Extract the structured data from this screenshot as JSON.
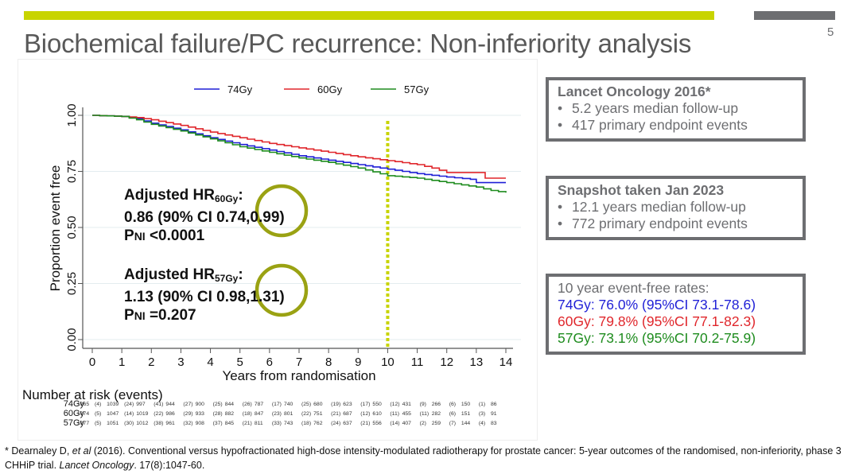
{
  "slide": {
    "title": "Biochemical failure/PC recurrence: Non-inferiority analysis",
    "page_number": "5",
    "colors": {
      "accent": "#c8d400",
      "grey": "#6d6e71",
      "circle": "#9aa213"
    }
  },
  "boxes": {
    "lancet": {
      "title": "Lancet Oncology 2016*",
      "bullets": [
        "5.2 years median follow-up",
        "417 primary endpoint events"
      ]
    },
    "snapshot": {
      "title": "Snapshot taken Jan 2023",
      "bullets": [
        "12.1 years median follow-up",
        "772 primary endpoint events"
      ]
    },
    "rates": {
      "heading": "10 year event-free rates:",
      "lines": [
        {
          "text": "74Gy: 76.0% (95%CI 73.1-78.6)",
          "color": "#1f1fd6"
        },
        {
          "text": "60Gy: 79.8% (95%CI 77.1-82.3)",
          "color": "#e0262b"
        },
        {
          "text": "57Gy: 73.1% (95%CI 70.2-75.9)",
          "color": "#1e8c1e"
        }
      ]
    }
  },
  "annotations": {
    "hr60": {
      "label": "Adjusted HR",
      "sub": "60Gy",
      "colon": ":",
      "line2": "0.86 (90% CI 0.74,0.99)",
      "p_prefix": "P",
      "p_sub": "NI",
      "p_value": " <0.0001"
    },
    "hr57": {
      "label": "Adjusted HR",
      "sub": "57Gy",
      "colon": ":",
      "line2": "1.13 (90% CI 0.98,1.31)",
      "p_prefix": "P",
      "p_sub": "NI",
      "p_value": " =0.207"
    }
  },
  "chart_data": {
    "type": "line",
    "title": "",
    "xlabel": "Years from randomisation",
    "ylabel": "Proportion event free",
    "xlim": [
      0,
      14
    ],
    "ylim": [
      0,
      1
    ],
    "x_ticks": [
      "0",
      "1",
      "2",
      "3",
      "4",
      "5",
      "6",
      "7",
      "8",
      "9",
      "10",
      "11",
      "12",
      "13",
      "14"
    ],
    "y_ticks": [
      "0.00",
      "0.25",
      "0.50",
      "0.75",
      "1.00"
    ],
    "grid": true,
    "legend_position": "top",
    "reference_line_x": 10,
    "series": [
      {
        "name": "74Gy",
        "color": "#1f1fd6",
        "x": [
          0,
          1,
          1.5,
          2,
          3,
          4,
          5,
          6,
          7,
          8,
          9,
          10,
          11,
          12,
          12.8,
          13,
          14
        ],
        "y": [
          1.0,
          0.995,
          0.985,
          0.965,
          0.935,
          0.9,
          0.87,
          0.845,
          0.82,
          0.8,
          0.78,
          0.76,
          0.74,
          0.725,
          0.715,
          0.7,
          0.7
        ]
      },
      {
        "name": "60Gy",
        "color": "#e0262b",
        "x": [
          0,
          1,
          1.5,
          2,
          3,
          4,
          5,
          6,
          7,
          8,
          9,
          10,
          11,
          11.5,
          12,
          13,
          13.3,
          14
        ],
        "y": [
          1.0,
          0.995,
          0.99,
          0.98,
          0.955,
          0.925,
          0.9,
          0.875,
          0.855,
          0.835,
          0.815,
          0.798,
          0.78,
          0.765,
          0.745,
          0.745,
          0.72,
          0.72
        ]
      },
      {
        "name": "57Gy",
        "color": "#1e8c1e",
        "x": [
          0,
          1,
          1.5,
          2,
          3,
          4,
          5,
          6,
          7,
          8,
          9,
          10,
          11,
          12,
          13,
          13.5,
          14
        ],
        "y": [
          1.0,
          0.995,
          0.98,
          0.96,
          0.93,
          0.895,
          0.86,
          0.835,
          0.81,
          0.79,
          0.765,
          0.731,
          0.72,
          0.7,
          0.68,
          0.665,
          0.655
        ]
      }
    ],
    "risk_table": {
      "title": "Number at risk (events)",
      "rows": [
        {
          "name": "74Gy",
          "cells": [
            "1065",
            "(4)",
            "1039",
            "(24)",
            "997",
            "(41)",
            "944",
            "(27)",
            "900",
            "(25)",
            "844",
            "(26)",
            "787",
            "(17)",
            "740",
            "(25)",
            "680",
            "(19)",
            "623",
            "(17)",
            "550",
            "(12)",
            "431",
            "(9)",
            "266",
            "(6)",
            "150",
            "(1)",
            "86"
          ]
        },
        {
          "name": "60Gy",
          "cells": [
            "1074",
            "(5)",
            "1047",
            "(14)",
            "1019",
            "(22)",
            "986",
            "(29)",
            "933",
            "(28)",
            "882",
            "(18)",
            "847",
            "(23)",
            "801",
            "(22)",
            "751",
            "(21)",
            "687",
            "(12)",
            "610",
            "(11)",
            "455",
            "(11)",
            "282",
            "(6)",
            "151",
            "(3)",
            "91"
          ]
        },
        {
          "name": "57Gy",
          "cells": [
            "1077",
            "(5)",
            "1051",
            "(30)",
            "1012",
            "(38)",
            "961",
            "(32)",
            "908",
            "(37)",
            "845",
            "(21)",
            "811",
            "(33)",
            "743",
            "(18)",
            "762",
            "(24)",
            "637",
            "(21)",
            "556",
            "(14)",
            "407",
            "(2)",
            "259",
            "(7)",
            "144",
            "(4)",
            "83"
          ]
        }
      ]
    }
  },
  "footnote": {
    "prefix": "* Dearnaley D, ",
    "etal": "et al",
    "mid": " (2016). Conventional versus hypofractionated high-dose intensity-modulated radiotherapy for prostate cancer: 5-year outcomes of the randomised, non-inferiority, phase 3 CHHiP trial. ",
    "journal": "Lancet Oncology",
    "suffix": ". 17(8):1047-60."
  }
}
